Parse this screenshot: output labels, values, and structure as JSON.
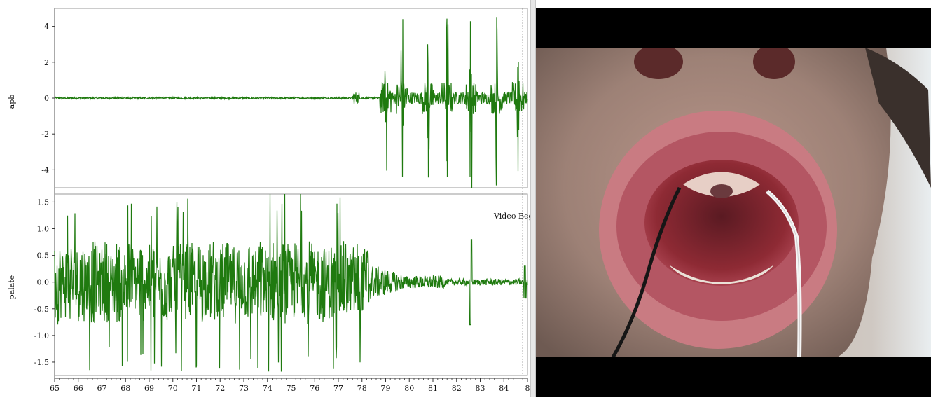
{
  "chart_data": [
    {
      "type": "line",
      "ylabel": "apb",
      "ylim": [
        -5,
        5
      ],
      "yticks": [
        "-4",
        "-2",
        "0",
        "2",
        "4"
      ],
      "xlim": [
        65,
        85
      ],
      "series_color": "#1f7a0f",
      "bursts_x": [
        79.0,
        79.7,
        80.8,
        81.6,
        82.6,
        83.7,
        84.6
      ]
    },
    {
      "type": "line",
      "ylabel": "palate",
      "ylim": [
        -1.75,
        1.65
      ],
      "yticks": [
        "1.5",
        "1.0",
        "0.5",
        "0.0",
        "-0.5",
        "-1.0",
        "-1.5"
      ],
      "xlim": [
        65,
        85
      ],
      "series_color": "#1f7a0f",
      "annotation": "Video Beg",
      "video_begin_x": 84.8
    }
  ],
  "x_axis": {
    "tick_labels": [
      "65",
      "66",
      "67",
      "68",
      "69",
      "70",
      "71",
      "72",
      "73",
      "74",
      "75",
      "76",
      "77",
      "78",
      "79",
      "80",
      "81",
      "82",
      "83",
      "84",
      "8"
    ]
  },
  "video": {
    "description_icon": "video-frame"
  }
}
